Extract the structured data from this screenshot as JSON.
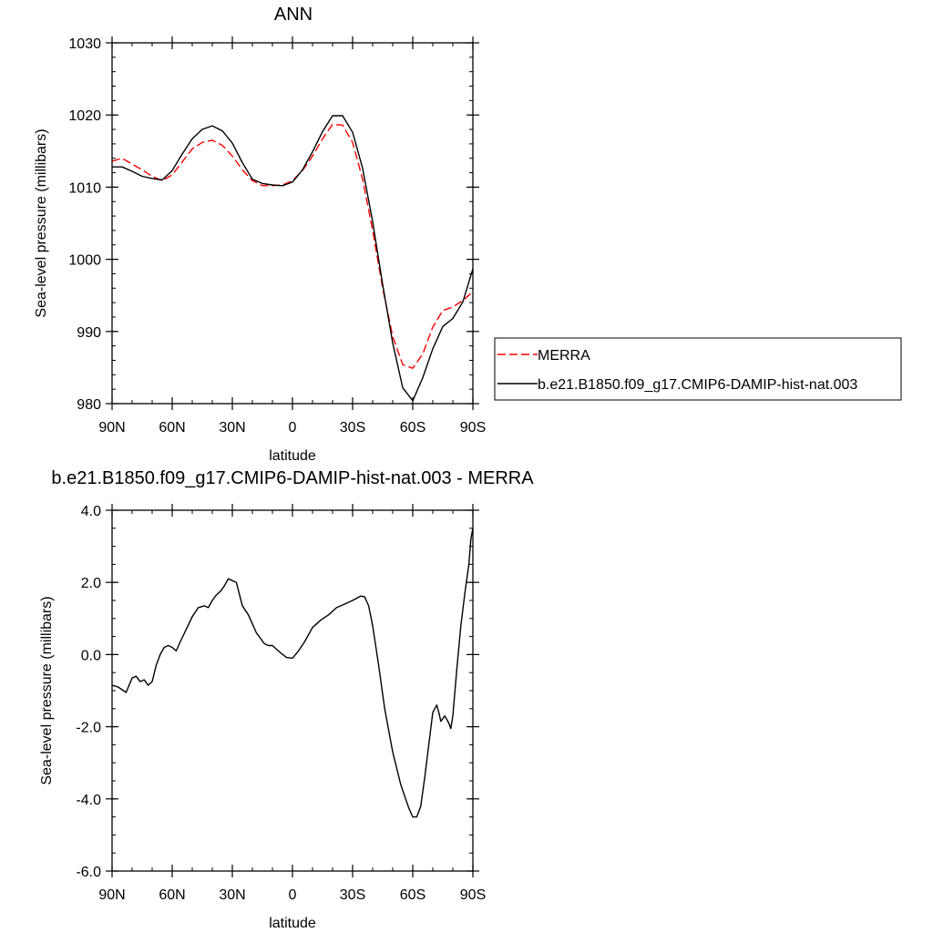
{
  "chart_data": [
    {
      "type": "line",
      "title": "ANN",
      "xlabel": "latitude",
      "ylabel": "Sea-level pressure (millibars)",
      "xlim": [
        90,
        -90
      ],
      "ylim": [
        980,
        1030
      ],
      "x_ticks": [
        90,
        60,
        30,
        0,
        -30,
        -60,
        -90
      ],
      "x_tick_labels": [
        "90N",
        "60N",
        "30N",
        "0",
        "30S",
        "60S",
        "90S"
      ],
      "y_ticks": [
        980,
        990,
        1000,
        1010,
        1020,
        1030
      ],
      "y_tick_labels": [
        "980",
        "990",
        "1000",
        "1010",
        "1020",
        "1030"
      ],
      "legend_position": "right",
      "series": [
        {
          "name": "MERRA",
          "color": "#ff0000",
          "style": "dashed",
          "x": [
            90,
            85,
            80,
            75,
            70,
            65,
            60,
            55,
            50,
            45,
            40,
            35,
            30,
            25,
            20,
            15,
            10,
            5,
            0,
            -5,
            -10,
            -15,
            -20,
            -25,
            -30,
            -35,
            -40,
            -45,
            -50,
            -55,
            -60,
            -65,
            -70,
            -75,
            -80,
            -85,
            -90
          ],
          "values": [
            1013.6,
            1014.0,
            1013.2,
            1012.4,
            1011.5,
            1010.9,
            1011.7,
            1013.5,
            1015.3,
            1016.2,
            1016.5,
            1015.8,
            1014.3,
            1012.4,
            1010.9,
            1010.2,
            1010.2,
            1010.3,
            1010.9,
            1012.3,
            1014.3,
            1016.7,
            1018.7,
            1018.6,
            1016.2,
            1011.1,
            1004.0,
            996.0,
            989.3,
            985.4,
            984.9,
            986.9,
            990.6,
            992.9,
            993.4,
            994.3,
            995.5
          ]
        },
        {
          "name": "b.e21.B1850.f09_g17.CMIP6-DAMIP-hist-nat.003",
          "color": "#000000",
          "style": "solid",
          "x": [
            90,
            85,
            80,
            75,
            70,
            65,
            60,
            55,
            50,
            45,
            40,
            35,
            30,
            25,
            20,
            15,
            10,
            5,
            0,
            -5,
            -10,
            -15,
            -20,
            -25,
            -30,
            -35,
            -40,
            -45,
            -50,
            -55,
            -60,
            -65,
            -70,
            -75,
            -80,
            -85,
            -90
          ],
          "values": [
            1012.8,
            1012.8,
            1012.2,
            1011.5,
            1011.2,
            1011.0,
            1012.3,
            1014.6,
            1016.7,
            1018.0,
            1018.5,
            1017.8,
            1016.1,
            1013.4,
            1011.1,
            1010.5,
            1010.3,
            1010.2,
            1010.7,
            1012.4,
            1014.9,
            1017.7,
            1019.9,
            1019.9,
            1017.6,
            1012.6,
            1005.2,
            996.5,
            988.4,
            982.2,
            980.4,
            983.6,
            987.6,
            990.7,
            991.8,
            994.1,
            998.7
          ]
        }
      ]
    },
    {
      "type": "line",
      "title": "b.e21.B1850.f09_g17.CMIP6-DAMIP-hist-nat.003 - MERRA",
      "xlabel": "latitude",
      "ylabel": "Sea-level pressure (millibars)",
      "xlim": [
        90,
        -90
      ],
      "ylim": [
        -6.0,
        4.0
      ],
      "x_ticks": [
        90,
        60,
        30,
        0,
        -30,
        -60,
        -90
      ],
      "x_tick_labels": [
        "90N",
        "60N",
        "30N",
        "0",
        "30S",
        "60S",
        "90S"
      ],
      "y_ticks": [
        -6,
        -4,
        -2,
        0,
        2,
        4
      ],
      "y_tick_labels": [
        "-6.0",
        "-4.0",
        "-2.0",
        "0.0",
        "2.0",
        "4.0"
      ],
      "series": [
        {
          "color": "#000000",
          "style": "solid",
          "x": [
            90,
            87,
            83,
            80,
            78,
            76,
            74,
            72,
            70,
            68,
            66,
            64,
            62,
            60,
            58,
            56,
            53,
            50,
            47,
            44,
            42,
            40,
            38,
            36,
            34,
            32,
            30,
            28,
            25,
            22,
            20,
            18,
            16,
            14,
            12,
            10,
            8,
            6,
            3,
            0,
            -3,
            -6,
            -10,
            -14,
            -18,
            -22,
            -26,
            -30,
            -34,
            -36,
            -38,
            -40,
            -43,
            -46,
            -50,
            -54,
            -58,
            -60,
            -62,
            -64,
            -66,
            -68,
            -70,
            -72,
            -73,
            -74,
            -76,
            -78,
            -79,
            -80,
            -82,
            -84,
            -86,
            -88,
            -89,
            -90
          ],
          "values": [
            -0.85,
            -0.9,
            -1.05,
            -0.65,
            -0.6,
            -0.75,
            -0.7,
            -0.85,
            -0.75,
            -0.3,
            0.0,
            0.2,
            0.25,
            0.2,
            0.1,
            0.35,
            0.7,
            1.05,
            1.3,
            1.35,
            1.3,
            1.5,
            1.65,
            1.75,
            1.9,
            2.1,
            2.05,
            2.0,
            1.35,
            1.1,
            0.85,
            0.6,
            0.45,
            0.3,
            0.25,
            0.25,
            0.15,
            0.05,
            -0.08,
            -0.1,
            0.1,
            0.35,
            0.75,
            0.95,
            1.1,
            1.3,
            1.4,
            1.5,
            1.62,
            1.6,
            1.35,
            0.8,
            -0.3,
            -1.5,
            -2.7,
            -3.6,
            -4.25,
            -4.5,
            -4.5,
            -4.2,
            -3.4,
            -2.5,
            -1.6,
            -1.4,
            -1.6,
            -1.85,
            -1.7,
            -1.9,
            -2.05,
            -1.7,
            -0.4,
            0.8,
            1.7,
            2.5,
            3.2,
            3.5
          ]
        }
      ]
    }
  ]
}
